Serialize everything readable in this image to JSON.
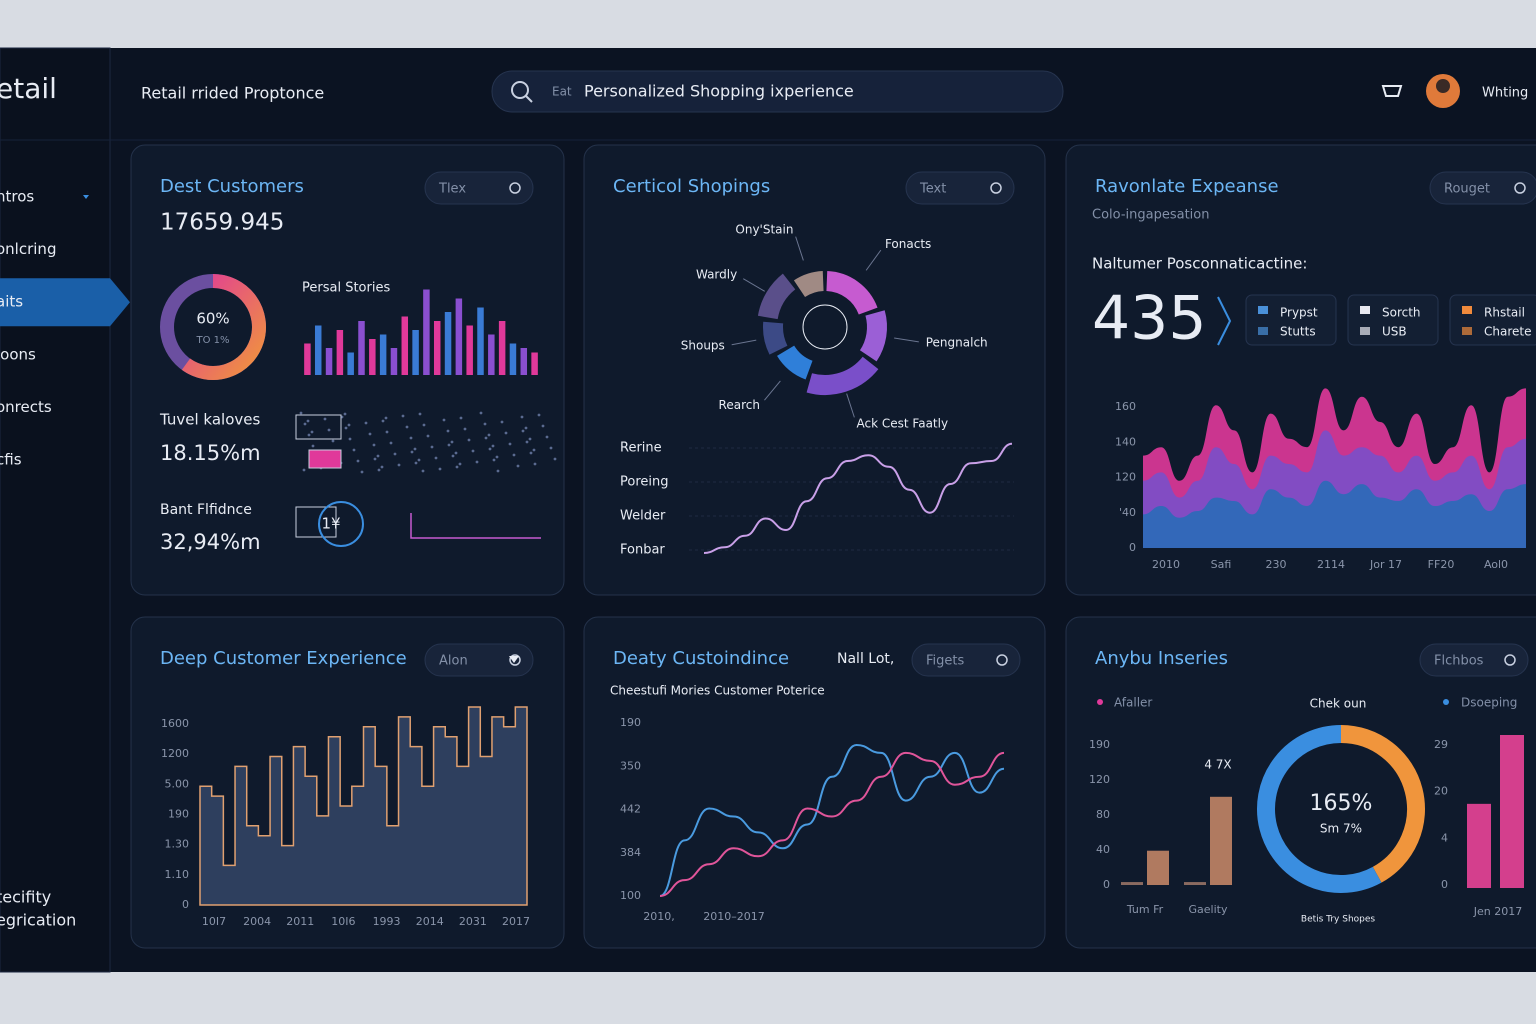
{
  "brand": "etail",
  "header": {
    "title": "Retail rrided Proptonce",
    "search_prefix": "Eat",
    "search": "Personalized Shopping ixperience",
    "user": "Whting"
  },
  "sidebar": {
    "items": [
      "ntros",
      "onlcring",
      "aits",
      "loons",
      "onrects",
      "cfis"
    ],
    "active": 2,
    "footer": [
      "tecifity",
      "egrication"
    ]
  },
  "cards": [
    {
      "title": "Dest Customers",
      "button": "Tlex",
      "value": "17659.945",
      "donut": {
        "value": 60,
        "label": "60%",
        "sub": "TO 1%"
      },
      "bars_title": "Persal Stories",
      "bars": {
        "ylim": [
          0,
          100
        ],
        "colors": [
          "#e0399a",
          "#3a7bd5",
          "#8a4fd0"
        ],
        "values": [
          35,
          55,
          30,
          50,
          25,
          60,
          40,
          45,
          30,
          65,
          50,
          95,
          60,
          70,
          85,
          55,
          75,
          45,
          60,
          35,
          30,
          25
        ]
      },
      "metrics": [
        {
          "label": "Tuvel kaloves",
          "value": "18.15%m"
        },
        {
          "label": "Bant Flfidnce",
          "value": "32,94%m",
          "badge": "1¥"
        }
      ]
    },
    {
      "title": "Certicol Shopings",
      "button": "Text",
      "pie": {
        "labels": [
          "Fonacts",
          "Pengnalch",
          "Ack Cest Faatly",
          "Rearch",
          "Shoups",
          "Wardly",
          "Ony'Stain"
        ],
        "values": [
          20,
          15,
          20,
          12,
          10,
          13,
          10
        ],
        "colors": [
          "#c65bd0",
          "#9b5fd6",
          "#7a4fc9",
          "#2f7fd9",
          "#3c4a86",
          "#5a4f8a",
          "#a08a84"
        ]
      },
      "line": {
        "categories": [
          "Rerine",
          "Poreing",
          "Welder",
          "Fonbar"
        ],
        "ylim": [
          0,
          100
        ],
        "color": "#c9a0e8",
        "values": [
          0,
          5,
          15,
          30,
          20,
          45,
          65,
          80,
          85,
          75,
          55,
          35,
          60,
          78,
          80,
          95
        ]
      }
    },
    {
      "title": "Ravonlate Expeanse",
      "button": "Rouget",
      "subtitle": "Colo-ingapesation",
      "kpi_label": "Naltumer Posconnaticactine:",
      "kpi": "435",
      "chips": [
        {
          "label": "Prypst",
          "sub": "Stutts",
          "color": "#4a90d9"
        },
        {
          "label": "Sorcth",
          "sub": "USB",
          "color": "#e8e8f0"
        },
        {
          "label": "Rhstail",
          "sub": "Charete",
          "color": "#f08a3c"
        }
      ],
      "area": {
        "y_labels": [
          "160",
          "140",
          "120",
          "'40",
          "0"
        ],
        "x_labels": [
          "2010",
          "Safi",
          "230",
          "2114",
          "Jor 17",
          "FF20",
          "Aol0"
        ],
        "ylim": [
          0,
          100
        ],
        "series": [
          {
            "color": "#e0399a",
            "values": [
              55,
              60,
              40,
              55,
              85,
              70,
              45,
              80,
              65,
              60,
              95,
              70,
              90,
              75,
              60,
              80,
              50,
              60,
              85,
              45,
              90,
              95
            ]
          },
          {
            "color": "#7a4fc9",
            "values": [
              40,
              45,
              30,
              40,
              60,
              50,
              35,
              55,
              50,
              45,
              70,
              55,
              60,
              55,
              45,
              55,
              40,
              45,
              55,
              35,
              60,
              65
            ]
          },
          {
            "color": "#2a6cb8",
            "values": [
              20,
              25,
              18,
              22,
              30,
              28,
              20,
              35,
              30,
              25,
              40,
              32,
              38,
              30,
              28,
              35,
              25,
              28,
              32,
              22,
              35,
              38
            ]
          }
        ]
      }
    },
    {
      "title": "Deep Customer Experience",
      "button": "Alon",
      "area": {
        "y_labels": [
          "1600",
          "1200",
          "5.00",
          "190",
          "1.30",
          "1.10",
          "0"
        ],
        "x_labels": [
          "10I7",
          "2004",
          "2011",
          "10I6",
          "1993",
          "2014",
          "2031",
          "2017"
        ],
        "ylim": [
          0,
          100
        ],
        "fill": "#2e3f5e",
        "stroke": "#e0a070",
        "values": [
          60,
          55,
          20,
          70,
          40,
          35,
          75,
          30,
          80,
          65,
          45,
          85,
          50,
          60,
          90,
          70,
          40,
          95,
          80,
          60,
          90,
          85,
          70,
          100,
          75,
          95,
          90,
          100
        ]
      }
    },
    {
      "title": "Deaty Custoindince",
      "tag": "Nall Lot,",
      "button": "Figets",
      "subtitle": "Cheestufi Mories Customer Poterice",
      "lines": {
        "y_labels": [
          "190",
          "350",
          "442",
          "384",
          "100"
        ],
        "x_labels": [
          "2010,",
          "2010–2017"
        ],
        "ylim": [
          0,
          100
        ],
        "series": [
          {
            "color": "#4a9be0",
            "values": [
              0,
              35,
              55,
              50,
              40,
              30,
              45,
              75,
              95,
              90,
              60,
              75,
              90,
              65,
              80
            ]
          },
          {
            "color": "#e0559a",
            "values": [
              0,
              10,
              20,
              30,
              25,
              35,
              55,
              50,
              60,
              75,
              90,
              85,
              70,
              75,
              90
            ]
          }
        ]
      }
    },
    {
      "title": "Anybu Inseries",
      "button": "Flchbos",
      "legend_left": {
        "name": "Afaller",
        "color": "#e0399a"
      },
      "donut_title": "Chek oun",
      "legend_right": {
        "name": "Dsoeping",
        "color": "#3a8ee0"
      },
      "bars": {
        "y_labels": [
          "190",
          "120",
          "80",
          "40",
          "0"
        ],
        "categories": [
          "Tum Fr",
          "Gaelity"
        ],
        "ylim": [
          0,
          100
        ],
        "note": "4 7X",
        "series": [
          {
            "color": "#8a6a60",
            "values": [
              3,
              3
            ]
          },
          {
            "color": "#b07a60",
            "values": [
              35,
              90
            ]
          }
        ]
      },
      "donut": {
        "values": [
          42,
          58
        ],
        "colors": [
          "#f0953c",
          "#3a8ee0"
        ],
        "label": "165%",
        "sub": "Sm 7%",
        "caption": "Betis Try Shopes"
      },
      "side_bars": {
        "y_labels": [
          "29",
          "20",
          "4",
          "0"
        ],
        "x_label": "Jen 2017",
        "ylim": [
          0,
          100
        ],
        "color": "#d43f8d",
        "values": [
          55,
          100
        ]
      }
    }
  ]
}
